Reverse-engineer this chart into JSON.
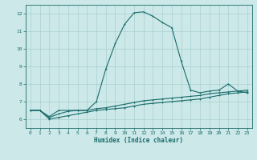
{
  "xlabel": "Humidex (Indice chaleur)",
  "bg_color": "#cce8e8",
  "grid_color": "#aad0d0",
  "line_color": "#1a6b6b",
  "xlim": [
    -0.5,
    23.5
  ],
  "ylim": [
    5.5,
    12.5
  ],
  "xticks": [
    0,
    1,
    2,
    3,
    4,
    5,
    6,
    7,
    8,
    9,
    10,
    11,
    12,
    13,
    14,
    15,
    16,
    17,
    18,
    19,
    20,
    21,
    22,
    23
  ],
  "yticks": [
    6,
    7,
    8,
    9,
    10,
    11,
    12
  ],
  "line1_x": [
    0,
    1,
    2,
    3,
    4,
    5,
    6,
    7,
    8,
    9,
    10,
    11,
    12,
    13,
    14,
    15,
    16,
    17,
    18,
    19,
    20,
    21,
    22,
    23
  ],
  "line1_y": [
    6.5,
    6.5,
    6.15,
    6.5,
    6.5,
    6.5,
    6.5,
    7.0,
    8.85,
    10.3,
    11.4,
    12.05,
    12.1,
    11.85,
    11.5,
    11.2,
    9.3,
    7.65,
    7.5,
    7.6,
    7.65,
    8.0,
    7.6,
    7.5
  ],
  "line2_x": [
    0,
    1,
    2,
    3,
    4,
    5,
    6,
    7,
    8,
    9,
    10,
    11,
    12,
    13,
    14,
    15,
    16,
    17,
    18,
    19,
    20,
    21,
    22,
    23
  ],
  "line2_y": [
    6.5,
    6.5,
    6.1,
    6.3,
    6.45,
    6.5,
    6.5,
    6.6,
    6.65,
    6.75,
    6.85,
    6.95,
    7.05,
    7.1,
    7.15,
    7.2,
    7.25,
    7.3,
    7.35,
    7.45,
    7.5,
    7.55,
    7.6,
    7.65
  ],
  "line3_x": [
    0,
    1,
    2,
    3,
    4,
    5,
    6,
    7,
    8,
    9,
    10,
    11,
    12,
    13,
    14,
    15,
    16,
    17,
    18,
    19,
    20,
    21,
    22,
    23
  ],
  "line3_y": [
    6.5,
    6.5,
    6.0,
    6.1,
    6.2,
    6.3,
    6.4,
    6.5,
    6.55,
    6.6,
    6.65,
    6.75,
    6.85,
    6.9,
    6.95,
    7.0,
    7.05,
    7.1,
    7.15,
    7.25,
    7.35,
    7.45,
    7.5,
    7.55
  ]
}
